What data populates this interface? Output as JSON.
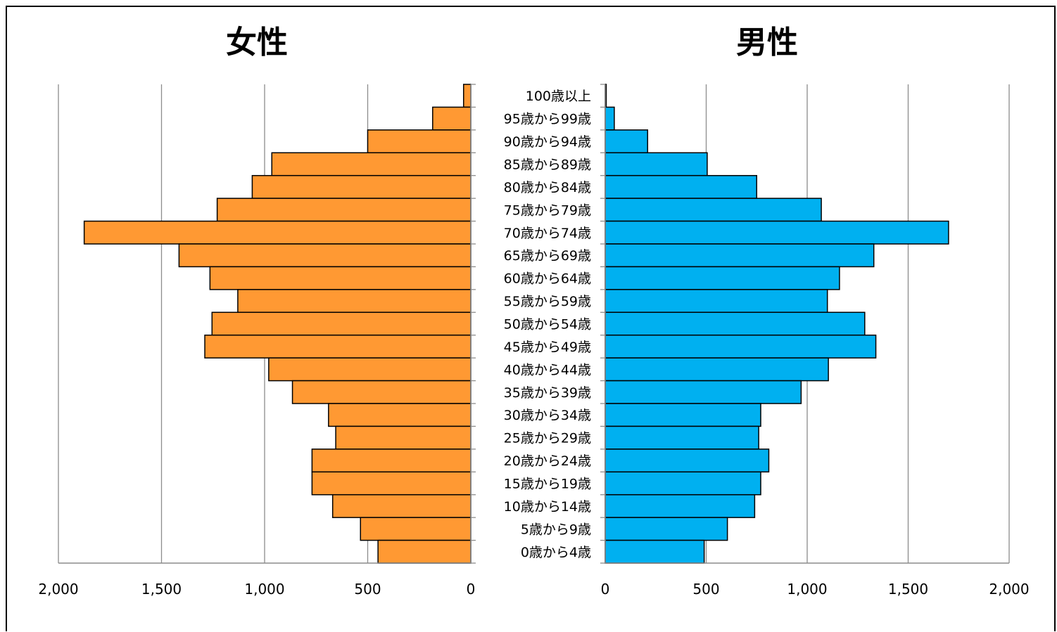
{
  "chart_data": [
    {
      "type": "bar",
      "orientation": "horizontal",
      "direction": "right-to-left",
      "title": "女性",
      "xlim": [
        0,
        2000
      ],
      "xticks": [
        "2,000",
        "1,500",
        "1,000",
        "500",
        "0"
      ],
      "grid": true,
      "bar_color": "#FF9933",
      "categories": [
        "100歳以上",
        "95歳から99歳",
        "90歳から94歳",
        "85歳から89歳",
        "80歳から84歳",
        "75歳から79歳",
        "70歳から74歳",
        "65歳から69歳",
        "60歳から64歳",
        "55歳から59歳",
        "50歳から54歳",
        "45歳から49歳",
        "40歳から44歳",
        "35歳から39歳",
        "30歳から34歳",
        "25歳から29歳",
        "20歳から24歳",
        "15歳から19歳",
        "10歳から14歳",
        "5歳から9歳",
        "0歳から4歳"
      ],
      "values": [
        35,
        185,
        500,
        965,
        1060,
        1230,
        1875,
        1415,
        1265,
        1130,
        1255,
        1290,
        980,
        865,
        690,
        655,
        770,
        770,
        670,
        535,
        450
      ]
    },
    {
      "type": "bar",
      "orientation": "horizontal",
      "direction": "left-to-right",
      "title": "男性",
      "xlim": [
        0,
        2000
      ],
      "xticks": [
        "0",
        "500",
        "1,000",
        "1,500",
        "2,000"
      ],
      "grid": true,
      "bar_color": "#00B0F0",
      "categories": [
        "100歳以上",
        "95歳から99歳",
        "90歳から94歳",
        "85歳から89歳",
        "80歳から84歳",
        "75歳から79歳",
        "70歳から74歳",
        "65歳から69歳",
        "60歳から64歳",
        "55歳から59歳",
        "50歳から54歳",
        "45歳から49歳",
        "40歳から44歳",
        "35歳から39歳",
        "30歳から34歳",
        "25歳から29歳",
        "20歳から24歳",
        "15歳から19歳",
        "10歳から14歳",
        "5歳から9歳",
        "0歳から4歳"
      ],
      "values": [
        5,
        45,
        210,
        505,
        750,
        1070,
        1700,
        1330,
        1160,
        1100,
        1285,
        1340,
        1105,
        970,
        770,
        760,
        810,
        770,
        740,
        605,
        490
      ]
    }
  ]
}
